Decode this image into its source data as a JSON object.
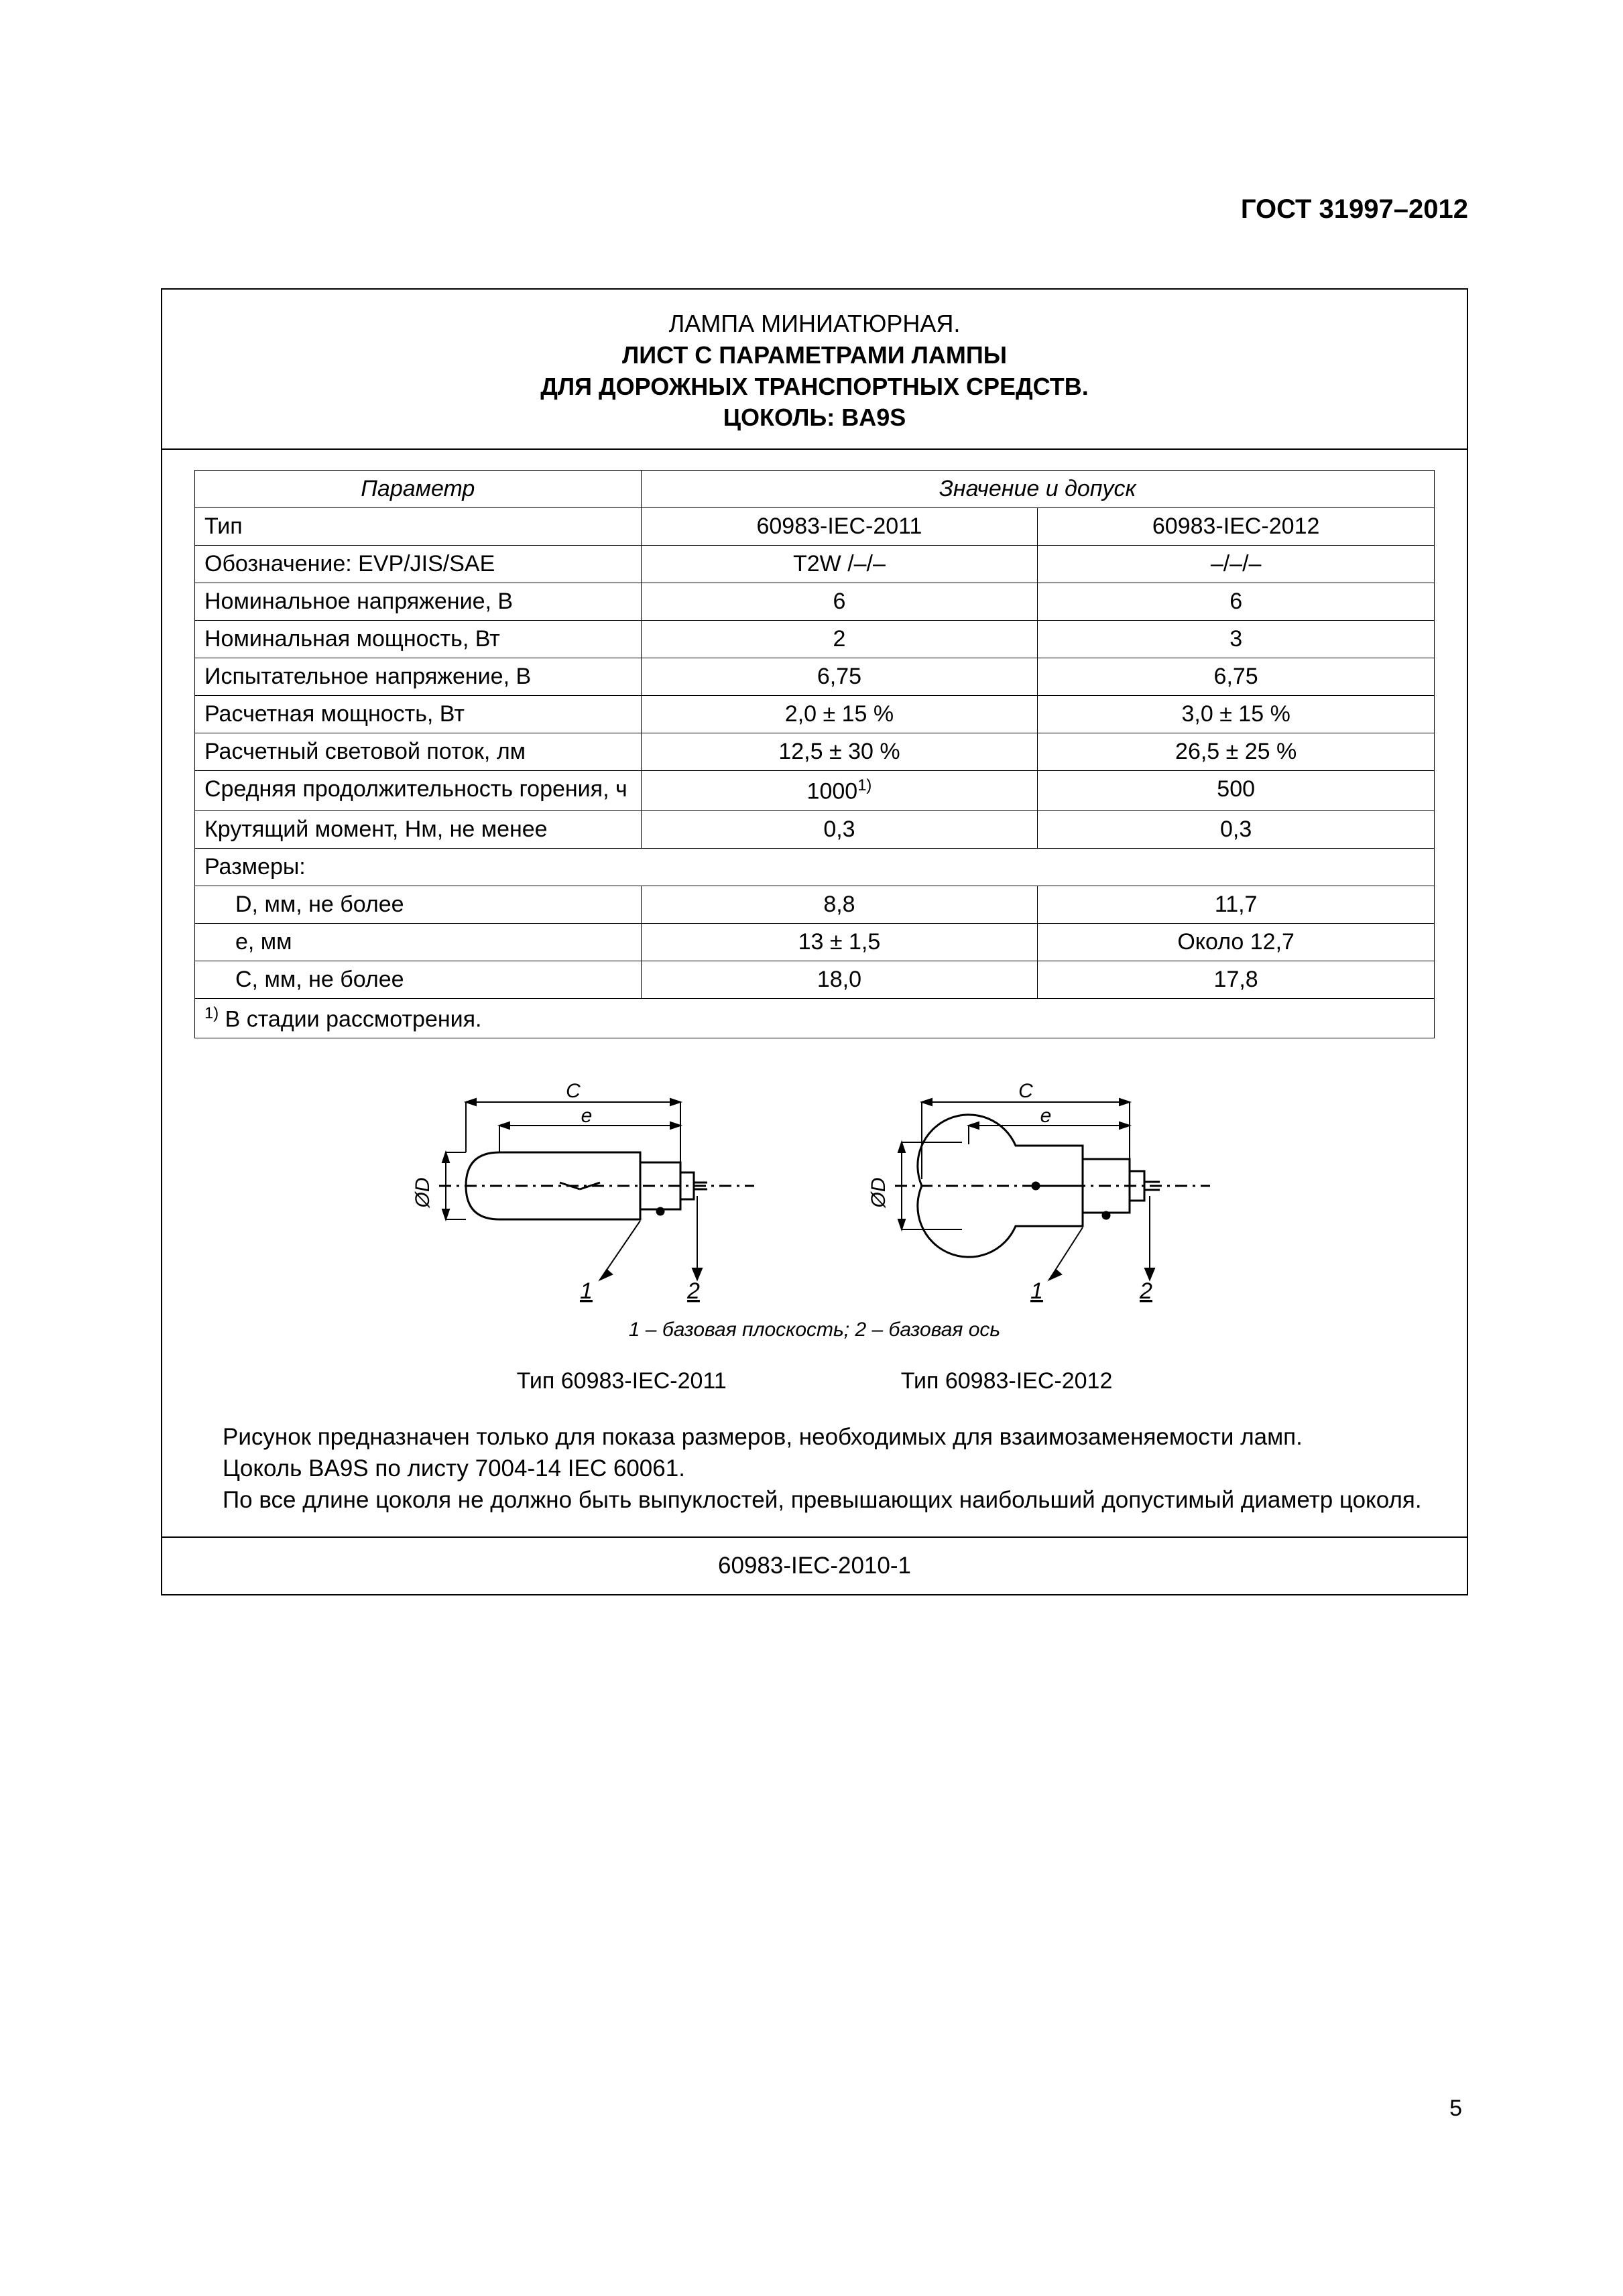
{
  "doc_header": "ГОСТ 31997–2012",
  "title": {
    "line1": "ЛАМПА МИНИАТЮРНАЯ.",
    "line2": "ЛИСТ С ПАРАМЕТРАМИ ЛАМПЫ",
    "line3": "ДЛЯ ДОРОЖНЫХ ТРАНСПОРТНЫХ СРЕДСТВ.",
    "line4": "ЦОКОЛЬ: BA9S"
  },
  "table": {
    "header_param": "Параметр",
    "header_value": "Значение и допуск",
    "rows": [
      {
        "label": "Тип",
        "v1": "60983-IEC-2011",
        "v2": "60983-IEC-2012",
        "indent": false
      },
      {
        "label": "Обозначение: EVP/JIS/SAE",
        "v1": "T2W /–/–",
        "v2": "–/–/–",
        "indent": false
      },
      {
        "label": "Номинальное напряжение, В",
        "v1": "6",
        "v2": "6",
        "indent": false
      },
      {
        "label": "Номинальная мощность, Вт",
        "v1": "2",
        "v2": "3",
        "indent": false
      },
      {
        "label": "Испытательное напряжение, В",
        "v1": "6,75",
        "v2": "6,75",
        "indent": false
      },
      {
        "label": "Расчетная мощность, Вт",
        "v1": "2,0 ± 15 %",
        "v2": "3,0 ± 15 %",
        "indent": false
      },
      {
        "label": "Расчетный световой поток, лм",
        "v1": "12,5 ± 30 %",
        "v2": "26,5 ± 25 %",
        "indent": false
      },
      {
        "label": "Средняя продолжительность горения, ч",
        "v1_html": "1000<span class='sup'>1)</span>",
        "v2": "500",
        "indent": false
      },
      {
        "label": "Крутящий момент, Нм, не менее",
        "v1": "0,3",
        "v2": "0,3",
        "indent": false
      },
      {
        "label": "Размеры:",
        "span": true,
        "indent": false
      },
      {
        "label": "D, мм, не более",
        "v1": "8,8",
        "v2": "11,7",
        "indent": true
      },
      {
        "label": "e, мм",
        "v1": "13 ± 1,5",
        "v2": "Около 12,7",
        "indent": true
      },
      {
        "label": "C, мм, не более",
        "v1": "18,0",
        "v2": "17,8",
        "indent": true
      }
    ],
    "footnote_html": "<span class='sup'>1)</span> В стадии рассмотрения."
  },
  "diagram": {
    "labels": {
      "C": "C",
      "e": "e",
      "D": "ØD",
      "n1": "1",
      "n2": "2"
    },
    "caption": "1 – базовая плоскость; 2 – базовая ось",
    "type1": "Тип 60983-IEC-2011",
    "type2": "Тип 60983-IEC-2012",
    "stroke": "#000000",
    "stroke_width": 2,
    "font_size": 30
  },
  "notes": {
    "p1": "Рисунок предназначен только для показа размеров, необходимых для взаимозаменяемости ламп.",
    "p2": "Цоколь BA9S по листу 7004-14 IEC 60061.",
    "p3": "По все длине цоколя не должно быть выпуклостей, превышающих наибольший допустимый диаметр цоколя."
  },
  "bottom_code": "60983-IEC-2010-1",
  "page_number": "5"
}
